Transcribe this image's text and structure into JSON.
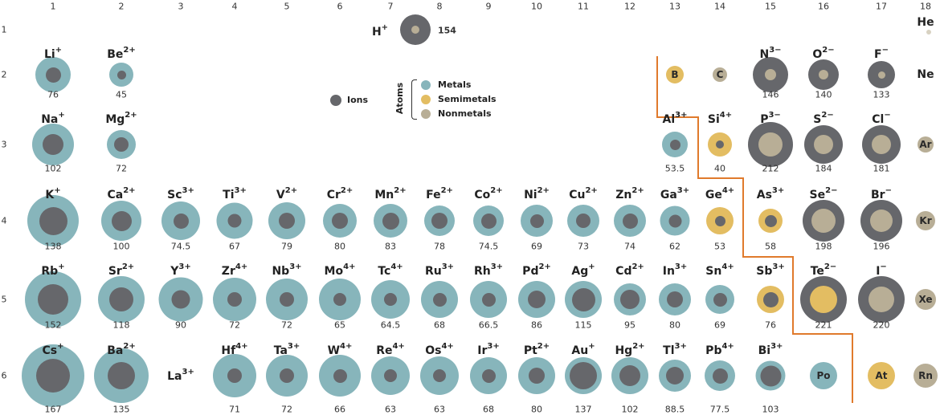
{
  "colors": {
    "metal": "#87b5bb",
    "semimetal": "#e3bd62",
    "nonmetal": "#b8ae96",
    "ion": "#66676b",
    "divider": "#e07a2c"
  },
  "group_numbers": [
    "1",
    "2",
    "3",
    "4",
    "5",
    "6",
    "7",
    "8",
    "9",
    "10",
    "11",
    "12",
    "13",
    "14",
    "15",
    "16",
    "17",
    "18"
  ],
  "period_numbers": [
    "1",
    "2",
    "3",
    "4",
    "5",
    "6"
  ],
  "legend": {
    "ions": "Ions",
    "atoms": "Atoms",
    "metals": "Metals",
    "semimetals": "Semimetals",
    "nonmetals": "Nonmetals"
  },
  "elements": [
    {
      "symbol": "H",
      "charge": "+",
      "value": "154",
      "group": 7.5,
      "period": 1,
      "kind": "anion",
      "atom": "nonmetal"
    },
    {
      "symbol": "He",
      "charge": "",
      "value": "",
      "group": 18,
      "period": 1,
      "kind": "tiny",
      "atom": "nonmetal"
    },
    {
      "symbol": "Li",
      "charge": "+",
      "value": "76",
      "group": 1,
      "period": 2,
      "kind": "cation",
      "atom": "metal"
    },
    {
      "symbol": "Be",
      "charge": "2+",
      "value": "45",
      "group": 2,
      "period": 2,
      "kind": "cation",
      "atom": "metal"
    },
    {
      "symbol": "B",
      "charge": "",
      "value": "",
      "group": 13,
      "period": 2,
      "kind": "atom",
      "atom": "semimetal"
    },
    {
      "symbol": "C",
      "charge": "",
      "value": "",
      "group": 14,
      "period": 2,
      "kind": "atom",
      "atom": "nonmetal"
    },
    {
      "symbol": "N",
      "charge": "3−",
      "value": "146",
      "group": 15,
      "period": 2,
      "kind": "anion",
      "atom": "nonmetal"
    },
    {
      "symbol": "O",
      "charge": "2−",
      "value": "140",
      "group": 16,
      "period": 2,
      "kind": "anion",
      "atom": "nonmetal"
    },
    {
      "symbol": "F",
      "charge": "−",
      "value": "133",
      "group": 17,
      "period": 2,
      "kind": "anion",
      "atom": "nonmetal"
    },
    {
      "symbol": "Ne",
      "charge": "",
      "value": "",
      "group": 18,
      "period": 2,
      "kind": "text",
      "atom": "nonmetal"
    },
    {
      "symbol": "Na",
      "charge": "+",
      "value": "102",
      "group": 1,
      "period": 3,
      "kind": "cation",
      "atom": "metal"
    },
    {
      "symbol": "Mg",
      "charge": "2+",
      "value": "72",
      "group": 2,
      "period": 3,
      "kind": "cation",
      "atom": "metal"
    },
    {
      "symbol": "Al",
      "charge": "3+",
      "value": "53.5",
      "group": 13,
      "period": 3,
      "kind": "cation",
      "atom": "metal"
    },
    {
      "symbol": "Si",
      "charge": "4+",
      "value": "40",
      "group": 14,
      "period": 3,
      "kind": "cation",
      "atom": "semimetal"
    },
    {
      "symbol": "P",
      "charge": "3−",
      "value": "212",
      "group": 15,
      "period": 3,
      "kind": "anion",
      "atom": "nonmetal"
    },
    {
      "symbol": "S",
      "charge": "2−",
      "value": "184",
      "group": 16,
      "period": 3,
      "kind": "anion",
      "atom": "nonmetal"
    },
    {
      "symbol": "Cl",
      "charge": "−",
      "value": "181",
      "group": 17,
      "period": 3,
      "kind": "anion",
      "atom": "nonmetal"
    },
    {
      "symbol": "Ar",
      "charge": "",
      "value": "",
      "group": 18,
      "period": 3,
      "kind": "atom",
      "atom": "nonmetal"
    },
    {
      "symbol": "K",
      "charge": "+",
      "value": "138",
      "group": 1,
      "period": 4,
      "kind": "cation",
      "atom": "metal"
    },
    {
      "symbol": "Ca",
      "charge": "2+",
      "value": "100",
      "group": 2,
      "period": 4,
      "kind": "cation",
      "atom": "metal"
    },
    {
      "symbol": "Sc",
      "charge": "3+",
      "value": "74.5",
      "group": 3,
      "period": 4,
      "kind": "cation",
      "atom": "metal"
    },
    {
      "symbol": "Ti",
      "charge": "3+",
      "value": "67",
      "group": 4,
      "period": 4,
      "kind": "cation",
      "atom": "metal"
    },
    {
      "symbol": "V",
      "charge": "2+",
      "value": "79",
      "group": 5,
      "period": 4,
      "kind": "cation",
      "atom": "metal"
    },
    {
      "symbol": "Cr",
      "charge": "2+",
      "value": "80",
      "group": 6,
      "period": 4,
      "kind": "cation",
      "atom": "metal"
    },
    {
      "symbol": "Mn",
      "charge": "2+",
      "value": "83",
      "group": 7,
      "period": 4,
      "kind": "cation",
      "atom": "metal"
    },
    {
      "symbol": "Fe",
      "charge": "2+",
      "value": "78",
      "group": 8,
      "period": 4,
      "kind": "cation",
      "atom": "metal"
    },
    {
      "symbol": "Co",
      "charge": "2+",
      "value": "74.5",
      "group": 9,
      "period": 4,
      "kind": "cation",
      "atom": "metal"
    },
    {
      "symbol": "Ni",
      "charge": "2+",
      "value": "69",
      "group": 10,
      "period": 4,
      "kind": "cation",
      "atom": "metal"
    },
    {
      "symbol": "Cu",
      "charge": "2+",
      "value": "73",
      "group": 11,
      "period": 4,
      "kind": "cation",
      "atom": "metal"
    },
    {
      "symbol": "Zn",
      "charge": "2+",
      "value": "74",
      "group": 12,
      "period": 4,
      "kind": "cation",
      "atom": "metal"
    },
    {
      "symbol": "Ga",
      "charge": "3+",
      "value": "62",
      "group": 13,
      "period": 4,
      "kind": "cation",
      "atom": "metal"
    },
    {
      "symbol": "Ge",
      "charge": "4+",
      "value": "53",
      "group": 14,
      "period": 4,
      "kind": "cation",
      "atom": "semimetal"
    },
    {
      "symbol": "As",
      "charge": "3+",
      "value": "58",
      "group": 15,
      "period": 4,
      "kind": "cation",
      "atom": "semimetal"
    },
    {
      "symbol": "Se",
      "charge": "2−",
      "value": "198",
      "group": 16,
      "period": 4,
      "kind": "anion",
      "atom": "nonmetal"
    },
    {
      "symbol": "Br",
      "charge": "−",
      "value": "196",
      "group": 17,
      "period": 4,
      "kind": "anion",
      "atom": "nonmetal"
    },
    {
      "symbol": "Kr",
      "charge": "",
      "value": "",
      "group": 18,
      "period": 4,
      "kind": "atom",
      "atom": "nonmetal"
    },
    {
      "symbol": "Rb",
      "charge": "+",
      "value": "152",
      "group": 1,
      "period": 5,
      "kind": "cation",
      "atom": "metal"
    },
    {
      "symbol": "Sr",
      "charge": "2+",
      "value": "118",
      "group": 2,
      "period": 5,
      "kind": "cation",
      "atom": "metal"
    },
    {
      "symbol": "Y",
      "charge": "3+",
      "value": "90",
      "group": 3,
      "period": 5,
      "kind": "cation",
      "atom": "metal"
    },
    {
      "symbol": "Zr",
      "charge": "4+",
      "value": "72",
      "group": 4,
      "period": 5,
      "kind": "cation",
      "atom": "metal"
    },
    {
      "symbol": "Nb",
      "charge": "3+",
      "value": "72",
      "group": 5,
      "period": 5,
      "kind": "cation",
      "atom": "metal"
    },
    {
      "symbol": "Mo",
      "charge": "4+",
      "value": "65",
      "group": 6,
      "period": 5,
      "kind": "cation",
      "atom": "metal"
    },
    {
      "symbol": "Tc",
      "charge": "4+",
      "value": "64.5",
      "group": 7,
      "period": 5,
      "kind": "cation",
      "atom": "metal"
    },
    {
      "symbol": "Ru",
      "charge": "3+",
      "value": "68",
      "group": 8,
      "period": 5,
      "kind": "cation",
      "atom": "metal"
    },
    {
      "symbol": "Rh",
      "charge": "3+",
      "value": "66.5",
      "group": 9,
      "period": 5,
      "kind": "cation",
      "atom": "metal"
    },
    {
      "symbol": "Pd",
      "charge": "2+",
      "value": "86",
      "group": 10,
      "period": 5,
      "kind": "cation",
      "atom": "metal"
    },
    {
      "symbol": "Ag",
      "charge": "+",
      "value": "115",
      "group": 11,
      "period": 5,
      "kind": "cation",
      "atom": "metal"
    },
    {
      "symbol": "Cd",
      "charge": "2+",
      "value": "95",
      "group": 12,
      "period": 5,
      "kind": "cation",
      "atom": "metal"
    },
    {
      "symbol": "In",
      "charge": "3+",
      "value": "80",
      "group": 13,
      "period": 5,
      "kind": "cation",
      "atom": "metal"
    },
    {
      "symbol": "Sn",
      "charge": "4+",
      "value": "69",
      "group": 14,
      "period": 5,
      "kind": "cation",
      "atom": "metal"
    },
    {
      "symbol": "Sb",
      "charge": "3+",
      "value": "76",
      "group": 15,
      "period": 5,
      "kind": "cation",
      "atom": "semimetal"
    },
    {
      "symbol": "Te",
      "charge": "2−",
      "value": "221",
      "group": 16,
      "period": 5,
      "kind": "anion",
      "atom": "semimetal"
    },
    {
      "symbol": "I",
      "charge": "−",
      "value": "220",
      "group": 17,
      "period": 5,
      "kind": "anion",
      "atom": "nonmetal"
    },
    {
      "symbol": "Xe",
      "charge": "",
      "value": "",
      "group": 18,
      "period": 5,
      "kind": "atom",
      "atom": "nonmetal"
    },
    {
      "symbol": "Cs",
      "charge": "+",
      "value": "167",
      "group": 1,
      "period": 6,
      "kind": "cation",
      "atom": "metal"
    },
    {
      "symbol": "Ba",
      "charge": "2+",
      "value": "135",
      "group": 2,
      "period": 6,
      "kind": "cation",
      "atom": "metal"
    },
    {
      "symbol": "La",
      "charge": "3+",
      "value": "",
      "group": 3,
      "period": 6,
      "kind": "text",
      "atom": "metal"
    },
    {
      "symbol": "Hf",
      "charge": "4+",
      "value": "71",
      "group": 4,
      "period": 6,
      "kind": "cation",
      "atom": "metal"
    },
    {
      "symbol": "Ta",
      "charge": "3+",
      "value": "72",
      "group": 5,
      "period": 6,
      "kind": "cation",
      "atom": "metal"
    },
    {
      "symbol": "W",
      "charge": "4+",
      "value": "66",
      "group": 6,
      "period": 6,
      "kind": "cation",
      "atom": "metal"
    },
    {
      "symbol": "Re",
      "charge": "4+",
      "value": "63",
      "group": 7,
      "period": 6,
      "kind": "cation",
      "atom": "metal"
    },
    {
      "symbol": "Os",
      "charge": "4+",
      "value": "63",
      "group": 8,
      "period": 6,
      "kind": "cation",
      "atom": "metal"
    },
    {
      "symbol": "Ir",
      "charge": "3+",
      "value": "68",
      "group": 9,
      "period": 6,
      "kind": "cation",
      "atom": "metal"
    },
    {
      "symbol": "Pt",
      "charge": "2+",
      "value": "80",
      "group": 10,
      "period": 6,
      "kind": "cation",
      "atom": "metal"
    },
    {
      "symbol": "Au",
      "charge": "+",
      "value": "137",
      "group": 11,
      "period": 6,
      "kind": "cation",
      "atom": "metal"
    },
    {
      "symbol": "Hg",
      "charge": "2+",
      "value": "102",
      "group": 12,
      "period": 6,
      "kind": "cation",
      "atom": "metal"
    },
    {
      "symbol": "Tl",
      "charge": "3+",
      "value": "88.5",
      "group": 13,
      "period": 6,
      "kind": "cation",
      "atom": "metal"
    },
    {
      "symbol": "Pb",
      "charge": "4+",
      "value": "77.5",
      "group": 14,
      "period": 6,
      "kind": "cation",
      "atom": "metal"
    },
    {
      "symbol": "Bi",
      "charge": "3+",
      "value": "103",
      "group": 15,
      "period": 6,
      "kind": "cation",
      "atom": "metal"
    },
    {
      "symbol": "Po",
      "charge": "",
      "value": "",
      "group": 16,
      "period": 6,
      "kind": "atom",
      "atom": "metal"
    },
    {
      "symbol": "At",
      "charge": "",
      "value": "",
      "group": 17,
      "period": 6,
      "kind": "atom",
      "atom": "semimetal"
    },
    {
      "symbol": "Rn",
      "charge": "",
      "value": "",
      "group": 18,
      "period": 6,
      "kind": "atom",
      "atom": "nonmetal"
    }
  ]
}
